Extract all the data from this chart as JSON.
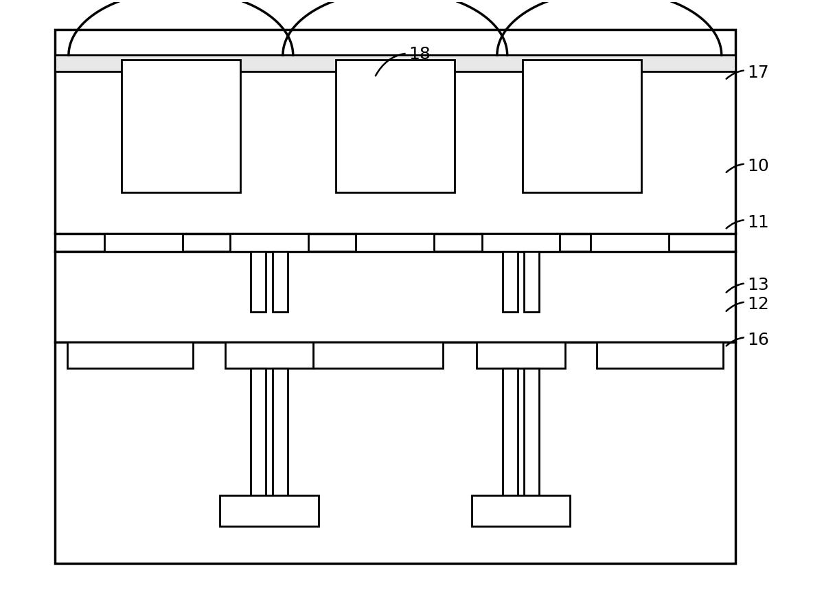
{
  "bg_color": "#ffffff",
  "line_color": "#000000",
  "lw": 2.0,
  "tlw": 2.5,
  "fig_width": 12.16,
  "fig_height": 8.7,
  "label_fontsize": 18
}
